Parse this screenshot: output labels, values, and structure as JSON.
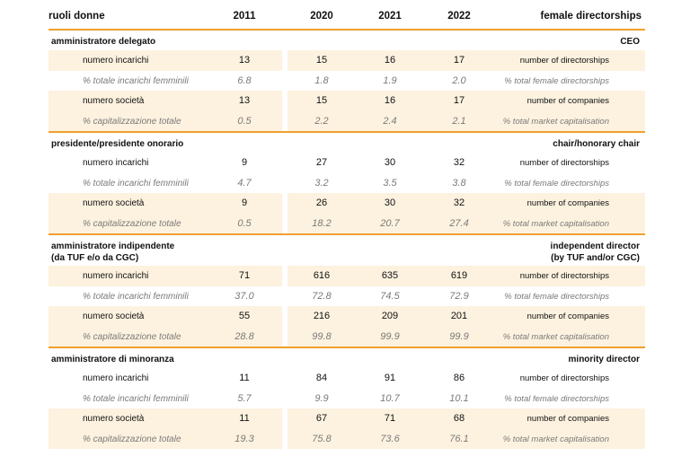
{
  "header": {
    "label_it": "ruoli donne",
    "years": [
      "2011",
      "2020",
      "2021",
      "2022"
    ],
    "label_en": "female directorships"
  },
  "sections": [
    {
      "title_it": "amministratore delegato",
      "title_en": "CEO",
      "rows": [
        {
          "label_it": "numero incarichi",
          "values": [
            "13",
            "15",
            "16",
            "17"
          ],
          "label_en": "number of directorships"
        },
        {
          "label_it": "% totale incarichi femminili",
          "values": [
            "6.8",
            "1.8",
            "1.9",
            "2.0"
          ],
          "label_en": "% total female directorships"
        },
        {
          "label_it": "numero società",
          "values": [
            "13",
            "15",
            "16",
            "17"
          ],
          "label_en": "number of companies"
        },
        {
          "label_it": "% capitalizzazione totale",
          "values": [
            "0.5",
            "2.2",
            "2.4",
            "2.1"
          ],
          "label_en": "% total market capitalisation"
        }
      ]
    },
    {
      "title_it": "presidente/presidente onorario",
      "title_en": "chair/honorary chair",
      "rows": [
        {
          "label_it": "numero incarichi",
          "values": [
            "9",
            "27",
            "30",
            "32"
          ],
          "label_en": "number of directorships"
        },
        {
          "label_it": "% totale incarichi femminili",
          "values": [
            "4.7",
            "3.2",
            "3.5",
            "3.8"
          ],
          "label_en": "% total female directorships"
        },
        {
          "label_it": "numero società",
          "values": [
            "9",
            "26",
            "30",
            "32"
          ],
          "label_en": "number of companies"
        },
        {
          "label_it": "% capitalizzazione totale",
          "values": [
            "0.5",
            "18.2",
            "20.7",
            "27.4"
          ],
          "label_en": "% total market capitalisation"
        }
      ]
    },
    {
      "title_it": "amministratore indipendente",
      "title_it_2": "(da TUF e/o da CGC)",
      "title_en": "independent director",
      "title_en_2": "(by TUF and/or CGC)",
      "rows": [
        {
          "label_it": "numero incarichi",
          "values": [
            "71",
            "616",
            "635",
            "619"
          ],
          "label_en": "number of directorships"
        },
        {
          "label_it": "% totale incarichi femminili",
          "values": [
            "37.0",
            "72.8",
            "74.5",
            "72.9"
          ],
          "label_en": "% total female directorships"
        },
        {
          "label_it": "numero società",
          "values": [
            "55",
            "216",
            "209",
            "201"
          ],
          "label_en": "number of companies"
        },
        {
          "label_it": "% capitalizzazione totale",
          "values": [
            "28.8",
            "99.8",
            "99.9",
            "99.9"
          ],
          "label_en": "% total market capitalisation"
        }
      ]
    },
    {
      "title_it": "amministratore di minoranza",
      "title_en": "minority director",
      "rows": [
        {
          "label_it": "numero incarichi",
          "values": [
            "11",
            "84",
            "91",
            "86"
          ],
          "label_en": "number of directorships"
        },
        {
          "label_it": "% totale incarichi femminili",
          "values": [
            "5.7",
            "9.9",
            "10.7",
            "10.1"
          ],
          "label_en": "% total female directorships"
        },
        {
          "label_it": "numero società",
          "values": [
            "11",
            "67",
            "71",
            "68"
          ],
          "label_en": "number of companies"
        },
        {
          "label_it": "% capitalizzazione totale",
          "values": [
            "19.3",
            "75.8",
            "73.6",
            "76.1"
          ],
          "label_en": "% total market capitalisation"
        }
      ]
    }
  ]
}
